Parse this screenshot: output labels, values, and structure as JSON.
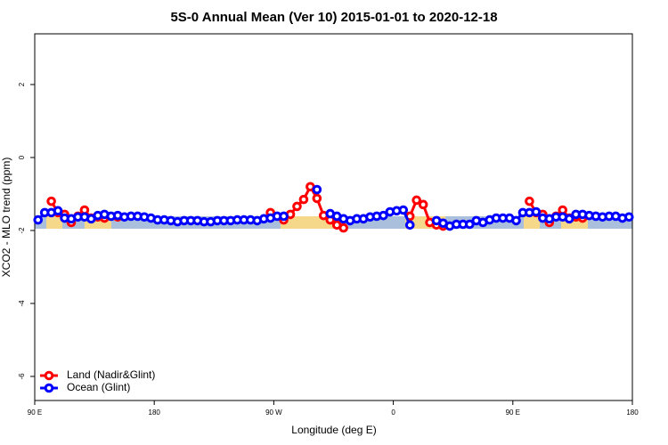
{
  "chart_data": {
    "type": "line",
    "title": "5S-0 Annual Mean (Ver 10)   2015-01-01 to 2020-12-18",
    "x_label": "Longitude (deg E)",
    "y_label": "XCO2 - MLO trend (ppm)",
    "xlim": [
      90,
      540
    ],
    "xticks": [
      {
        "value": 90,
        "label": "90 E"
      },
      {
        "value": 180,
        "label": "180"
      },
      {
        "value": 270,
        "label": "90 W"
      },
      {
        "value": 360,
        "label": "0"
      },
      {
        "value": 450,
        "label": "90 E"
      },
      {
        "value": 540,
        "label": "180"
      }
    ],
    "ylim": [
      -6.66,
      3.39
    ],
    "yticks": [
      2,
      0,
      -2,
      -4,
      -6
    ],
    "legend": "bottom-left",
    "x": [
      92.5,
      97.5,
      102.5,
      107.5,
      112.5,
      117.5,
      122.5,
      127.5,
      132.5,
      137.5,
      142.5,
      147.5,
      152.5,
      157.5,
      162.5,
      167.5,
      172.5,
      177.5,
      182.5,
      187.5,
      192.5,
      197.5,
      202.5,
      207.5,
      212.5,
      217.5,
      222.5,
      227.5,
      232.5,
      237.5,
      242.5,
      247.5,
      252.5,
      257.5,
      262.5,
      267.5,
      272.5,
      277.5,
      282.5,
      287.5,
      292.5,
      297.5,
      302.5,
      307.5,
      312.5,
      317.5,
      322.5,
      327.5,
      332.5,
      337.5,
      342.5,
      347.5,
      352.5,
      357.5,
      362.5,
      367.5,
      372.5,
      377.5,
      382.5,
      387.5,
      392.5,
      397.5,
      402.5,
      407.5,
      412.5,
      417.5,
      422.5,
      427.5,
      432.5,
      437.5,
      442.5,
      447.5,
      452.5,
      457.5,
      462.5,
      467.5,
      472.5,
      477.5,
      482.5,
      487.5,
      492.5,
      497.5,
      502.5,
      507.5,
      512.5,
      517.5,
      522.5,
      527.5,
      532.5,
      537.5
    ],
    "series": [
      {
        "name": "Land (Nadir&Glint)",
        "color": "#ff0000",
        "values": [
          null,
          null,
          -1.2,
          -1.51,
          -1.56,
          -1.78,
          -1.61,
          -1.44,
          -1.66,
          -1.63,
          -1.66,
          null,
          -1.63,
          null,
          null,
          null,
          null,
          null,
          null,
          null,
          null,
          null,
          null,
          null,
          null,
          null,
          null,
          null,
          null,
          null,
          null,
          null,
          null,
          null,
          null,
          -1.51,
          null,
          -1.71,
          -1.56,
          -1.34,
          -1.15,
          -0.8,
          -1.12,
          -1.59,
          -1.71,
          -1.85,
          -1.93,
          null,
          null,
          null,
          null,
          null,
          null,
          null,
          null,
          null,
          -1.61,
          -1.17,
          -1.29,
          -1.78,
          -1.85,
          -1.88,
          null,
          null,
          null,
          null,
          null,
          null,
          null,
          null,
          null,
          null,
          null,
          null,
          -1.2,
          -1.51,
          -1.56,
          -1.78,
          -1.61,
          -1.44,
          -1.66,
          -1.63,
          -1.66,
          null,
          null,
          null,
          null,
          null,
          null,
          null
        ]
      },
      {
        "name": "Ocean (Glint)",
        "color": "#0000ff",
        "values": [
          -1.71,
          -1.51,
          -1.51,
          -1.46,
          -1.66,
          -1.68,
          -1.63,
          -1.63,
          -1.68,
          -1.59,
          -1.56,
          -1.61,
          -1.59,
          -1.63,
          -1.61,
          -1.61,
          -1.63,
          -1.66,
          -1.71,
          -1.71,
          -1.73,
          -1.76,
          -1.73,
          -1.73,
          -1.73,
          -1.76,
          -1.76,
          -1.73,
          -1.73,
          -1.73,
          -1.71,
          -1.71,
          -1.71,
          -1.73,
          -1.68,
          -1.66,
          -1.61,
          -1.61,
          null,
          null,
          null,
          null,
          -0.88,
          null,
          -1.54,
          -1.61,
          -1.68,
          -1.73,
          -1.68,
          -1.68,
          -1.63,
          -1.61,
          -1.59,
          -1.49,
          -1.46,
          -1.44,
          -1.85,
          null,
          null,
          null,
          -1.73,
          -1.8,
          -1.88,
          -1.83,
          -1.83,
          -1.83,
          -1.73,
          -1.78,
          -1.71,
          -1.66,
          -1.66,
          -1.66,
          -1.73,
          -1.51,
          -1.51,
          -1.49,
          -1.66,
          -1.68,
          -1.63,
          -1.63,
          -1.68,
          -1.56,
          -1.56,
          -1.59,
          -1.61,
          -1.63,
          -1.61,
          -1.61,
          -1.66,
          -1.63
        ]
      }
    ]
  }
}
